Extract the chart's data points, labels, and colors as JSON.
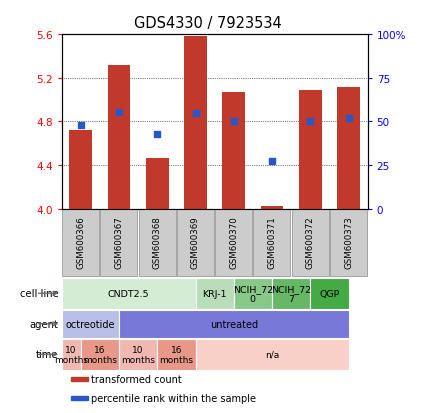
{
  "title": "GDS4330 / 7923534",
  "samples": [
    "GSM600366",
    "GSM600367",
    "GSM600368",
    "GSM600369",
    "GSM600370",
    "GSM600371",
    "GSM600372",
    "GSM600373"
  ],
  "bar_values": [
    4.72,
    5.32,
    4.46,
    5.58,
    5.07,
    4.02,
    5.09,
    5.12
  ],
  "percentile_values": [
    4.77,
    4.89,
    4.68,
    4.88,
    4.8,
    4.44,
    4.8,
    4.83
  ],
  "ylim_left": [
    4.0,
    5.6
  ],
  "ylim_right": [
    0,
    100
  ],
  "yticks_left": [
    4.0,
    4.4,
    4.8,
    5.2,
    5.6
  ],
  "yticks_right": [
    0,
    25,
    50,
    75,
    100
  ],
  "ytick_labels_right": [
    "0",
    "25",
    "50",
    "75",
    "100%"
  ],
  "bar_color": "#C0392B",
  "dot_color": "#2858C8",
  "bar_width": 0.6,
  "cell_line_groups": [
    {
      "label": "CNDT2.5",
      "span": [
        0,
        3.5
      ],
      "color": "#d4ecd4"
    },
    {
      "label": "KRJ-1",
      "span": [
        3.5,
        4.5
      ],
      "color": "#b8ddb8"
    },
    {
      "label": "NCIH_72\n0",
      "span": [
        4.5,
        5.5
      ],
      "color": "#88c888"
    },
    {
      "label": "NCIH_72\n7",
      "span": [
        5.5,
        6.5
      ],
      "color": "#66b866"
    },
    {
      "label": "QGP",
      "span": [
        6.5,
        7.5
      ],
      "color": "#44aa44"
    }
  ],
  "agent_groups": [
    {
      "label": "octreotide",
      "span": [
        0,
        1.5
      ],
      "color": "#b8c0e8"
    },
    {
      "label": "untreated",
      "span": [
        1.5,
        7.5
      ],
      "color": "#7878d8"
    }
  ],
  "time_groups": [
    {
      "label": "10\nmonths",
      "span": [
        0,
        0.5
      ],
      "color": "#f0b8b0"
    },
    {
      "label": "16\nmonths",
      "span": [
        0.5,
        1.5
      ],
      "color": "#e89888"
    },
    {
      "label": "10\nmonths",
      "span": [
        1.5,
        2.5
      ],
      "color": "#f0b8b0"
    },
    {
      "label": "16\nmonths",
      "span": [
        2.5,
        3.5
      ],
      "color": "#e89888"
    },
    {
      "label": "n/a",
      "span": [
        3.5,
        7.5
      ],
      "color": "#f8d0c8"
    }
  ],
  "row_labels": [
    "cell line",
    "agent",
    "time"
  ],
  "legend_items": [
    {
      "label": "transformed count",
      "color": "#C0392B"
    },
    {
      "label": "percentile rank within the sample",
      "color": "#2858C8"
    }
  ],
  "sample_box_color": "#cccccc",
  "sample_box_edge": "#999999"
}
